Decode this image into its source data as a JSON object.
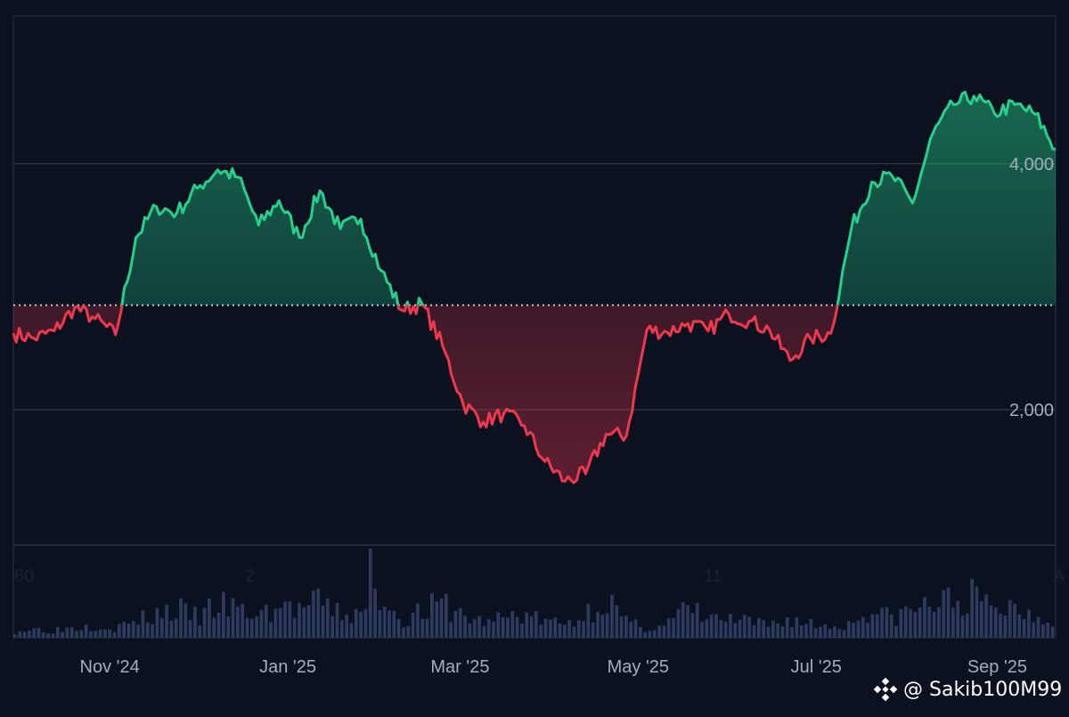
{
  "chart_data": {
    "type": "area",
    "baseline": 2850,
    "ylim": [
      900,
      5200
    ],
    "y_ticks": [
      {
        "value": 4000,
        "label": "4,000"
      },
      {
        "value": 2000,
        "label": "2,000"
      }
    ],
    "x_ticks": [
      {
        "date": "2024-11-01",
        "label": "Nov '24"
      },
      {
        "date": "2025-01-01",
        "label": "Jan '25"
      },
      {
        "date": "2025-03-01",
        "label": "Mar '25"
      },
      {
        "date": "2025-05-01",
        "label": "May '25"
      },
      {
        "date": "2025-07-01",
        "label": "Jul '25"
      },
      {
        "date": "2025-09-01",
        "label": "Sep '25"
      }
    ],
    "volume_axis_labels": [
      "60",
      "2",
      "11",
      "A"
    ],
    "colors": {
      "up": "#24d18c",
      "down": "#f0384d",
      "background": "#0c1120",
      "grid": "#2a3140",
      "volume": "#2e3a5e",
      "baseline_dots": "#cfd3dc"
    },
    "price": {
      "x": [
        "2024-09-29",
        "2024-10-06",
        "2024-10-13",
        "2024-10-20",
        "2024-10-27",
        "2024-11-03",
        "2024-11-10",
        "2024-11-17",
        "2024-11-24",
        "2024-12-01",
        "2024-12-08",
        "2024-12-15",
        "2024-12-22",
        "2024-12-29",
        "2025-01-05",
        "2025-01-12",
        "2025-01-19",
        "2025-01-26",
        "2025-02-02",
        "2025-02-09",
        "2025-02-16",
        "2025-02-23",
        "2025-03-02",
        "2025-03-09",
        "2025-03-16",
        "2025-03-23",
        "2025-03-30",
        "2025-04-06",
        "2025-04-13",
        "2025-04-20",
        "2025-04-27",
        "2025-05-04",
        "2025-05-11",
        "2025-05-18",
        "2025-05-25",
        "2025-06-01",
        "2025-06-08",
        "2025-06-15",
        "2025-06-22",
        "2025-06-29",
        "2025-07-06",
        "2025-07-13",
        "2025-07-20",
        "2025-07-27",
        "2025-08-03",
        "2025-08-10",
        "2025-08-17",
        "2025-08-24",
        "2025-08-31",
        "2025-09-07",
        "2025-09-14",
        "2025-09-21"
      ],
      "y": [
        2620,
        2580,
        2640,
        2830,
        2740,
        2610,
        3400,
        3650,
        3600,
        3800,
        3950,
        3890,
        3500,
        3700,
        3400,
        3780,
        3470,
        3550,
        3130,
        2810,
        2860,
        2520,
        2050,
        1900,
        1970,
        1870,
        1580,
        1420,
        1480,
        1800,
        1790,
        2650,
        2630,
        2700,
        2640,
        2780,
        2720,
        2650,
        2400,
        2580,
        2620,
        3470,
        3850,
        3900,
        3680,
        4250,
        4480,
        4550,
        4410,
        4480,
        4400,
        4120
      ]
    },
    "volume": [
      6,
      8,
      7,
      10,
      12,
      9,
      15,
      22,
      25,
      18,
      30,
      24,
      20,
      28,
      26,
      31,
      22,
      19,
      40,
      16,
      24,
      30,
      20,
      14,
      18,
      22,
      15,
      12,
      20,
      38,
      14,
      9,
      12,
      26,
      18,
      16,
      14,
      11,
      17,
      13,
      10,
      12,
      26,
      18,
      24,
      30,
      33,
      37,
      26,
      28,
      22,
      18
    ]
  },
  "watermark": {
    "text": "@ Sakib100M99",
    "icon": "binance-diamond-icon"
  }
}
